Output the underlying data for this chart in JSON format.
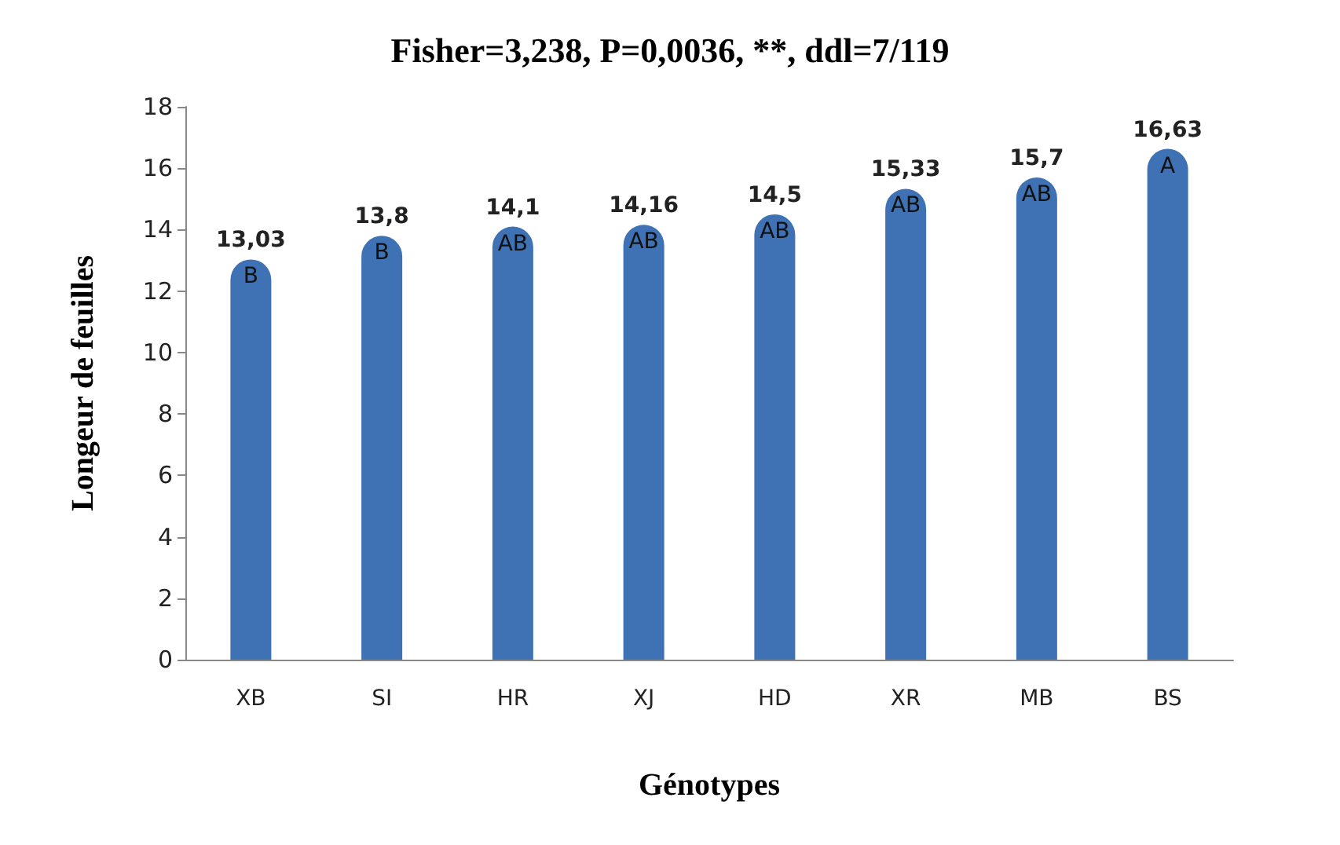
{
  "chart_data": {
    "type": "bar",
    "title": "Fisher=3,238, P=0,0036, **, ddl=7/119",
    "xlabel": "Génotypes",
    "ylabel": "Longeur de feuilles",
    "categories": [
      "XB",
      "SI",
      "HR",
      "XJ",
      "HD",
      "XR",
      "MB",
      "BS"
    ],
    "values": [
      13.03,
      13.8,
      14.1,
      14.16,
      14.5,
      15.33,
      15.7,
      16.63
    ],
    "value_labels": [
      "13,03",
      "13,8",
      "14,1",
      "14,16",
      "14,5",
      "15,33",
      "15,7",
      "16,63"
    ],
    "color": "#3f72b5",
    "ylim": [
      0,
      18
    ],
    "yticks": [
      0,
      2,
      4,
      6,
      8,
      10,
      12,
      14,
      16,
      18
    ],
    "annotations": [
      {
        "text": "B",
        "x": "XB",
        "y": 13.03
      },
      {
        "text": "B",
        "x": "SI",
        "y": 13.8
      },
      {
        "text": "AB",
        "x": "HR",
        "y": 14.1
      },
      {
        "text": "AB",
        "x": "XJ",
        "y": 14.16
      },
      {
        "text": "AB",
        "x": "HD",
        "y": 14.5
      },
      {
        "text": "AB",
        "x": "XR",
        "y": 15.33
      },
      {
        "text": "AB",
        "x": "MB",
        "y": 15.7
      },
      {
        "text": "A",
        "x": "BS",
        "y": 16.63
      }
    ]
  }
}
